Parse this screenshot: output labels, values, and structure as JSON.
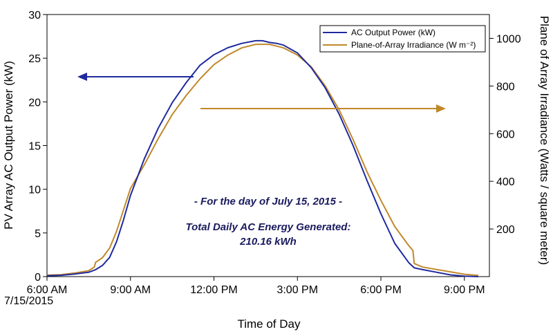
{
  "chart_data": {
    "type": "line",
    "xlabel": "Time of Day",
    "ylabel": "PV Array AC Output Power (kW)",
    "y2label": "Plane of Array Irradiance (Watts / square meter)",
    "x_ticks": [
      "6:00 AM",
      "9:00 AM",
      "12:00 PM",
      "3:00 PM",
      "6:00 PM",
      "9:00 PM"
    ],
    "x_tick_hours": [
      6,
      9,
      12,
      15,
      18,
      21
    ],
    "x_sublabel": "7/15/2015",
    "xlim": [
      6,
      21.9
    ],
    "ylim": [
      0,
      30
    ],
    "y_ticks": [
      0,
      5,
      10,
      15,
      20,
      25,
      30
    ],
    "y2lim": [
      0,
      1100
    ],
    "y2_ticks": [
      200,
      400,
      600,
      800,
      1000
    ],
    "grid": false,
    "legend_position": "top-right",
    "series": [
      {
        "name": "AC Output Power (kW)",
        "axis": "left",
        "color": "#1f2a9e",
        "x": [
          6.0,
          6.5,
          7.0,
          7.5,
          7.75,
          8.0,
          8.25,
          8.5,
          8.75,
          9.0,
          9.5,
          10.0,
          10.5,
          11.0,
          11.5,
          12.0,
          12.5,
          13.0,
          13.5,
          13.75,
          14.0,
          14.25,
          14.5,
          15.0,
          15.5,
          16.0,
          16.5,
          17.0,
          17.5,
          18.0,
          18.5,
          19.0,
          19.2,
          19.5,
          20.0,
          20.5,
          21.0,
          21.5
        ],
        "y": [
          0.1,
          0.15,
          0.3,
          0.5,
          0.8,
          1.3,
          2.2,
          4.0,
          6.5,
          9.3,
          13.5,
          17.0,
          19.9,
          22.2,
          24.2,
          25.4,
          26.2,
          26.7,
          27.0,
          27.0,
          26.8,
          26.7,
          26.5,
          25.6,
          23.9,
          21.6,
          18.6,
          15.0,
          11.0,
          7.2,
          3.8,
          1.6,
          1.0,
          0.8,
          0.5,
          0.2,
          0.05,
          0.0
        ]
      },
      {
        "name": "Plane-of-Array Irradiance (W m⁻²)",
        "axis": "right",
        "color": "#c0882a",
        "x": [
          6.0,
          6.5,
          7.0,
          7.5,
          7.7,
          7.75,
          8.0,
          8.25,
          8.5,
          8.75,
          9.0,
          9.5,
          10.0,
          10.5,
          11.0,
          11.5,
          12.0,
          12.5,
          13.0,
          13.5,
          14.0,
          14.5,
          15.0,
          15.5,
          16.0,
          16.5,
          17.0,
          17.5,
          18.0,
          18.5,
          19.0,
          19.15,
          19.2,
          19.5,
          20.0,
          20.5,
          21.0,
          21.5
        ],
        "y": [
          6,
          8,
          15,
          25,
          40,
          60,
          80,
          120,
          190,
          280,
          370,
          470,
          580,
          680,
          760,
          830,
          890,
          930,
          960,
          975,
          975,
          960,
          930,
          880,
          800,
          700,
          575,
          440,
          320,
          210,
          130,
          110,
          55,
          40,
          30,
          20,
          10,
          5
        ]
      }
    ],
    "annotations": [
      "- For the day of July 15, 2015 -",
      "Total Daily AC Energy Generated:",
      "210.16 kWh"
    ],
    "arrows": [
      {
        "direction": "left",
        "series": "AC Output Power (kW)"
      },
      {
        "direction": "right",
        "series": "Plane-of-Array Irradiance (W m⁻²)"
      }
    ]
  }
}
